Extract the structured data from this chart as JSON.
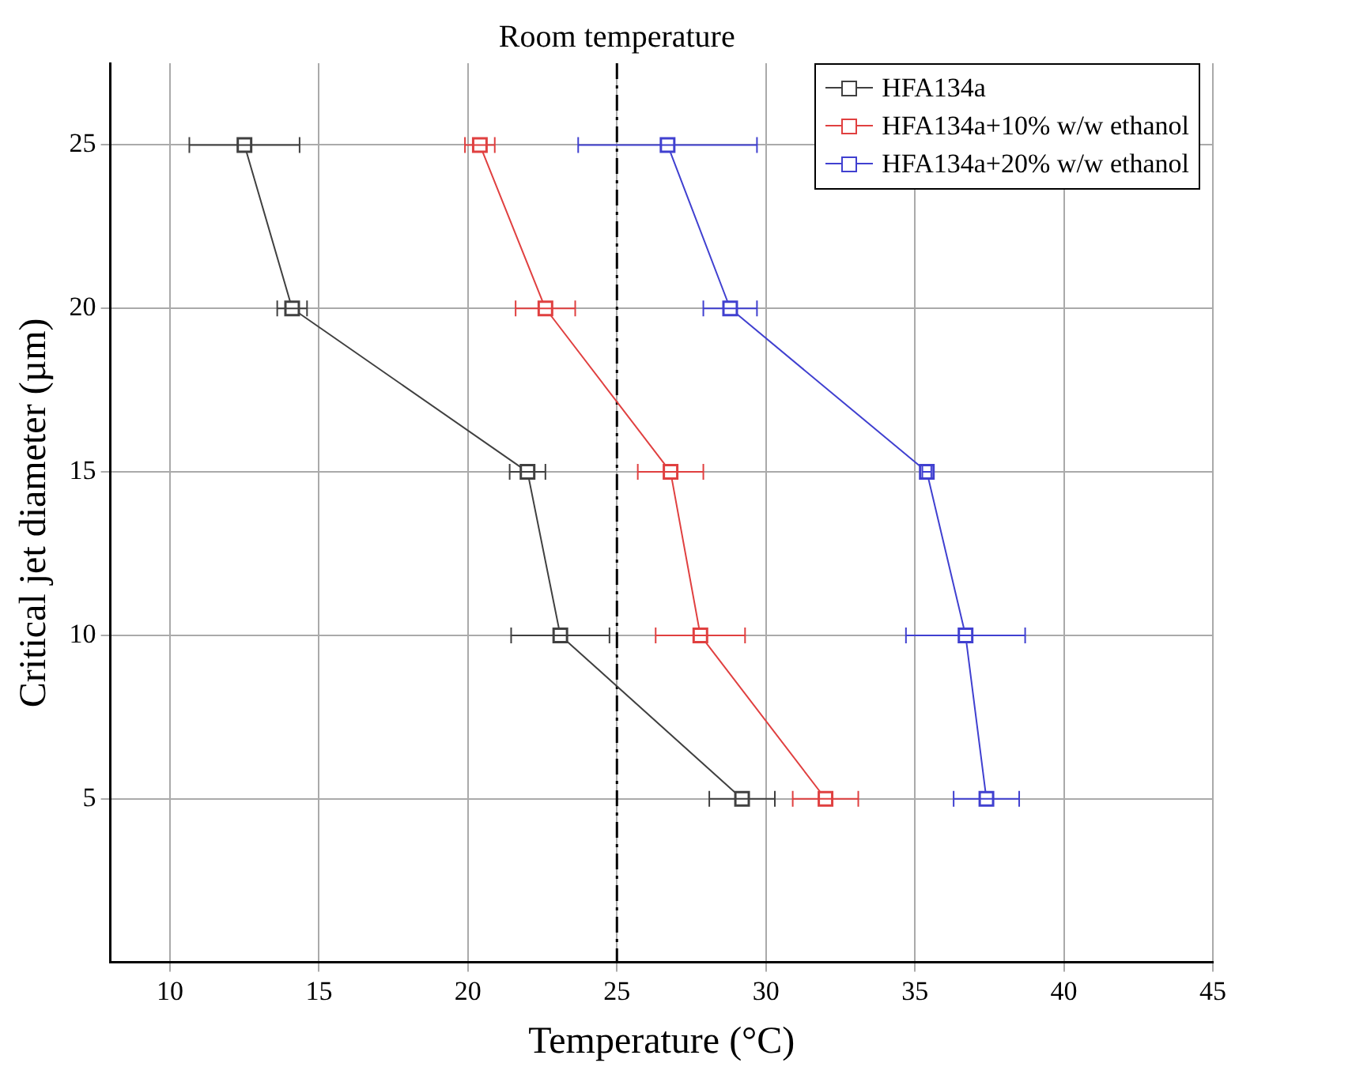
{
  "chart_data": {
    "type": "line",
    "xlabel": "Temperature (°C)",
    "ylabel": "Critical jet diameter (µm)",
    "xlim": [
      8,
      45
    ],
    "xticks": [
      10,
      15,
      20,
      25,
      30,
      35,
      40,
      45
    ],
    "ylim": [
      0,
      27.5
    ],
    "yticks": [
      5,
      10,
      15,
      20,
      25
    ],
    "grid": true,
    "legend": "top right",
    "marker": "square",
    "line_style": "solid",
    "ref_lines": [
      {
        "axis": "x",
        "value": 25,
        "label": "Room temperature",
        "color": "#000000",
        "line_style": "dashdot"
      }
    ],
    "series": [
      {
        "name": "HFA134a",
        "color": "#404040",
        "x": [
          12.5,
          14.1,
          22.0,
          23.1,
          29.2
        ],
        "values": [
          25,
          20,
          15,
          10,
          5
        ],
        "xerrors": [
          1.85,
          0.5,
          0.6,
          1.65,
          1.1
        ]
      },
      {
        "name": "HFA134a+10% w/w ethanol",
        "color": "#e04040",
        "x": [
          20.4,
          22.6,
          26.8,
          27.8,
          32.0
        ],
        "values": [
          25,
          20,
          15,
          10,
          5
        ],
        "xerrors": [
          0.5,
          1.0,
          1.1,
          1.5,
          1.1
        ]
      },
      {
        "name": "HFA134a+20% w/w ethanol",
        "color": "#4040d0",
        "x": [
          26.7,
          28.8,
          35.4,
          36.7,
          37.4
        ],
        "values": [
          25,
          20,
          15,
          10,
          5
        ],
        "xerrors": [
          3.0,
          0.9,
          0.15,
          2.0,
          1.1
        ]
      }
    ]
  }
}
